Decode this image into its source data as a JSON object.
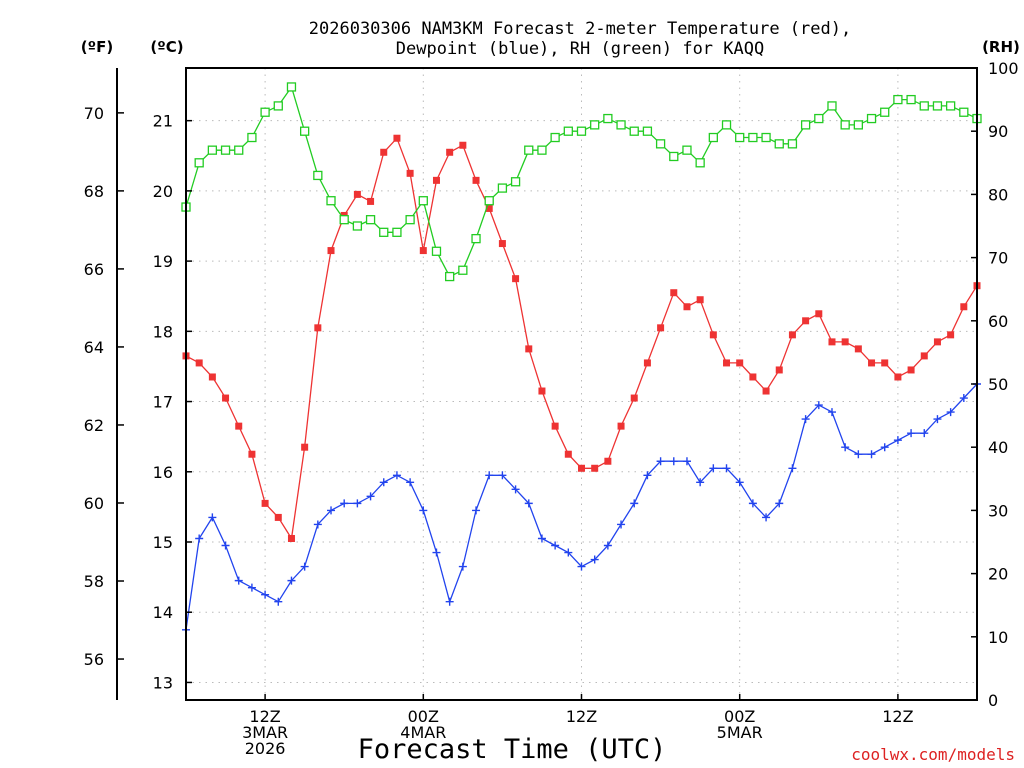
{
  "chart_data": {
    "type": "line",
    "title_line1": "2026030306 NAM3KM Forecast 2-meter Temperature (red),",
    "title_line2": "Dewpoint (blue), RH (green) for KAQQ",
    "xlabel": "Forecast Time (UTC)",
    "credit": "coolwx.com/models",
    "units": {
      "fahrenheit": "(ºF)",
      "celsius": "(ºC)",
      "rh": "(RH)"
    },
    "x_hours_range": [
      0,
      60
    ],
    "celsius_range": [
      12.75,
      21.75
    ],
    "rh_range": [
      0,
      100
    ],
    "x_ticks": [
      {
        "hour": 6,
        "lines": [
          "12Z",
          "3MAR",
          "2026"
        ]
      },
      {
        "hour": 18,
        "lines": [
          "00Z",
          "4MAR"
        ]
      },
      {
        "hour": 30,
        "lines": [
          "12Z"
        ]
      },
      {
        "hour": 42,
        "lines": [
          "00Z",
          "5MAR"
        ]
      },
      {
        "hour": 54,
        "lines": [
          "12Z"
        ]
      }
    ],
    "celsius_ticks": [
      "13",
      "14",
      "15",
      "16",
      "17",
      "18",
      "19",
      "20",
      "21"
    ],
    "fahrenheit_ticks": [
      "56",
      "58",
      "60",
      "62",
      "64",
      "66",
      "68",
      "70"
    ],
    "rh_ticks": [
      "0",
      "10",
      "20",
      "30",
      "40",
      "50",
      "60",
      "70",
      "80",
      "90",
      "100"
    ],
    "series": [
      {
        "name": "2-meter Temperature",
        "color": "#ee3333",
        "marker": "filled-square",
        "axis": "celsius",
        "values": [
          17.65,
          17.55,
          17.35,
          17.05,
          16.65,
          16.25,
          15.55,
          15.35,
          15.05,
          16.35,
          18.05,
          19.15,
          19.65,
          19.95,
          19.85,
          20.55,
          20.75,
          20.25,
          19.15,
          20.15,
          20.55,
          20.65,
          20.15,
          19.75,
          19.25,
          18.75,
          17.75,
          17.15,
          16.65,
          16.25,
          16.05,
          16.05,
          16.15,
          16.65,
          17.05,
          17.55,
          18.05,
          18.55,
          18.35,
          18.45,
          17.95,
          17.55,
          17.55,
          17.35,
          17.15,
          17.45,
          17.95,
          18.15,
          18.25,
          17.85,
          17.85,
          17.75,
          17.55,
          17.55,
          17.35,
          17.45,
          17.65,
          17.85,
          17.95,
          18.35,
          18.65
        ]
      },
      {
        "name": "Dewpoint",
        "color": "#2244ee",
        "marker": "plus",
        "axis": "celsius",
        "values": [
          13.75,
          15.05,
          15.35,
          14.95,
          14.45,
          14.35,
          14.25,
          14.15,
          14.45,
          14.65,
          15.25,
          15.45,
          15.55,
          15.55,
          15.65,
          15.85,
          15.95,
          15.85,
          15.45,
          14.85,
          14.15,
          14.65,
          15.45,
          15.95,
          15.95,
          15.75,
          15.55,
          15.05,
          14.95,
          14.85,
          14.65,
          14.75,
          14.95,
          15.25,
          15.55,
          15.95,
          16.15,
          16.15,
          16.15,
          15.85,
          16.05,
          16.05,
          15.85,
          15.55,
          15.35,
          15.55,
          16.05,
          16.75,
          16.95,
          16.85,
          16.35,
          16.25,
          16.25,
          16.35,
          16.45,
          16.55,
          16.55,
          16.75,
          16.85,
          17.05,
          17.25
        ]
      },
      {
        "name": "RH",
        "color": "#22cc22",
        "marker": "open-square",
        "axis": "rh",
        "values": [
          78,
          85,
          87,
          87,
          87,
          89,
          93,
          94,
          97,
          90,
          83,
          79,
          76,
          75,
          76,
          74,
          74,
          76,
          79,
          71,
          67,
          68,
          73,
          79,
          81,
          82,
          87,
          87,
          89,
          90,
          90,
          91,
          92,
          91,
          90,
          90,
          88,
          86,
          87,
          85,
          89,
          91,
          89,
          89,
          89,
          88,
          88,
          91,
          92,
          94,
          91,
          91,
          92,
          93,
          95,
          95,
          94,
          94,
          94,
          93,
          92
        ]
      }
    ]
  }
}
